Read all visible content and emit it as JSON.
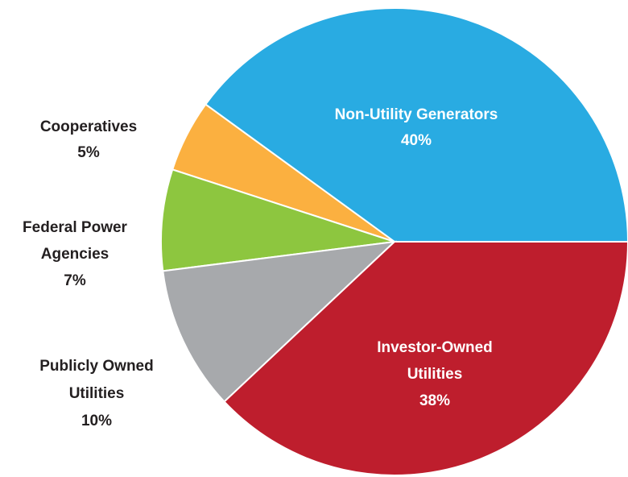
{
  "chart_data": {
    "type": "pie",
    "categories": [
      "Non-Utility Generators",
      "Cooperatives",
      "Federal Power Agencies",
      "Publicly Owned Utilities",
      "Investor-Owned Utilities"
    ],
    "values": [
      40,
      5,
      7,
      10,
      38
    ],
    "value_labels": [
      "40%",
      "5%",
      "7%",
      "10%",
      "38%"
    ],
    "colors": [
      "#29abe2",
      "#fbb040",
      "#8dc63f",
      "#a7a9ac",
      "#be1e2d"
    ]
  }
}
